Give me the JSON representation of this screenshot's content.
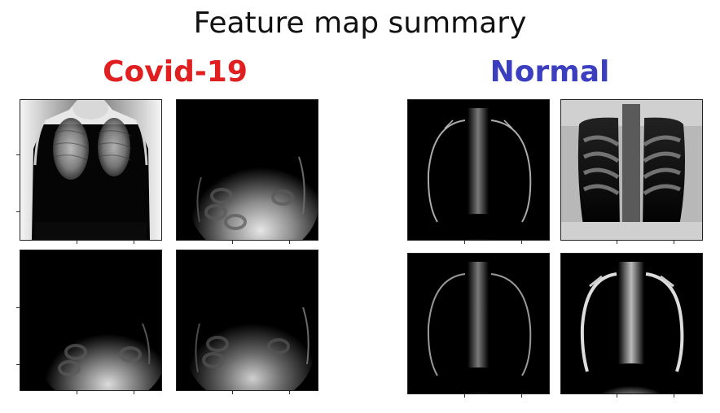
{
  "figure": {
    "title": "Feature map summary",
    "groups": [
      {
        "label": "Covid-19",
        "color": "#e02020"
      },
      {
        "label": "Normal",
        "color": "#3b3fbf"
      }
    ]
  }
}
